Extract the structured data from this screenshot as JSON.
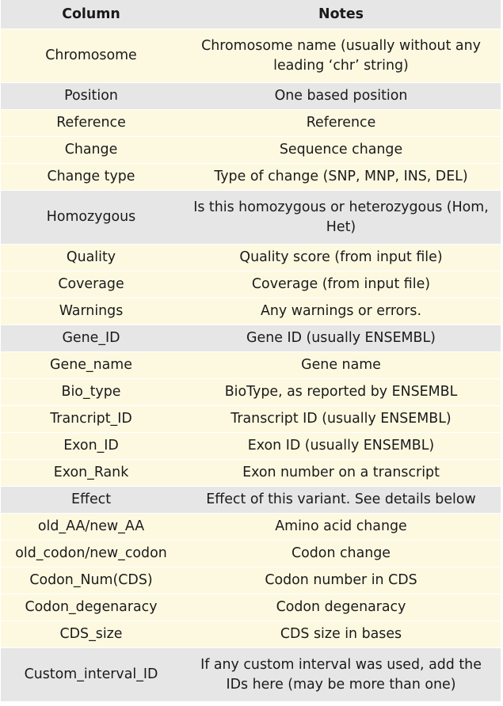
{
  "table": {
    "headers": [
      "Column",
      "Notes"
    ],
    "rows": [
      {
        "column": "Chromosome",
        "notes": "Chromosome name (usually without any leading ‘chr’ string)"
      },
      {
        "column": "Position",
        "notes": "One based position"
      },
      {
        "column": "Reference",
        "notes": "Reference"
      },
      {
        "column": "Change",
        "notes": "Sequence change"
      },
      {
        "column": "Change type",
        "notes": "Type of change (SNP, MNP, INS, DEL)"
      },
      {
        "column": "Homozygous",
        "notes": "Is this homozygous or heterozygous (Hom, Het)"
      },
      {
        "column": "Quality",
        "notes": "Quality score (from input file)"
      },
      {
        "column": "Coverage",
        "notes": "Coverage (from input file)"
      },
      {
        "column": "Warnings",
        "notes": "Any warnings or errors."
      },
      {
        "column": "Gene_ID",
        "notes": "Gene ID (usually ENSEMBL)"
      },
      {
        "column": "Gene_name",
        "notes": "Gene name"
      },
      {
        "column": "Bio_type",
        "notes": "BioType, as reported by ENSEMBL"
      },
      {
        "column": "Trancript_ID",
        "notes": "Transcript ID (usually ENSEMBL)"
      },
      {
        "column": "Exon_ID",
        "notes": "Exon ID (usually ENSEMBL)"
      },
      {
        "column": "Exon_Rank",
        "notes": "Exon number on a transcript"
      },
      {
        "column": "Effect",
        "notes": "Effect of this variant. See details below"
      },
      {
        "column": "old_AA/new_AA",
        "notes": "Amino acid change"
      },
      {
        "column": "old_codon/new_codon",
        "notes": "Codon change"
      },
      {
        "column": "Codon_Num(CDS)",
        "notes": "Codon number in CDS"
      },
      {
        "column": "Codon_degenaracy",
        "notes": "Codon degenaracy"
      },
      {
        "column": "CDS_size",
        "notes": "CDS size in bases"
      },
      {
        "column": "Custom_interval_ID",
        "notes": "If any custom interval was used, add the IDs here (may be more than one)"
      }
    ]
  },
  "colors": {
    "header_bg": "#e6e6e7",
    "row_odd_bg": "#fdf9e1",
    "row_even_bg": "#e6e6e7"
  }
}
